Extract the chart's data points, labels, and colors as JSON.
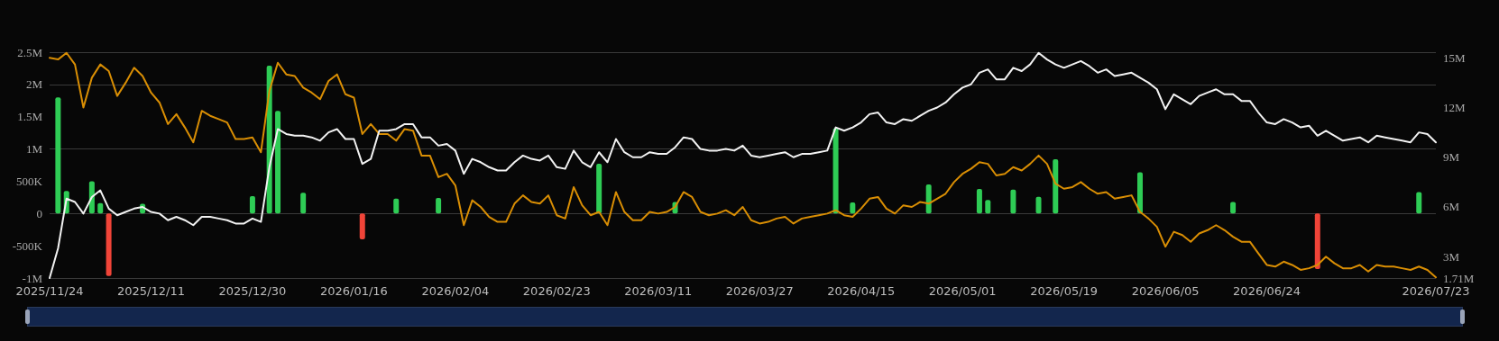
{
  "chart_data": {
    "type": "bar",
    "categories": [
      "2025/11/24",
      null,
      null,
      null,
      null,
      null,
      null,
      null,
      null,
      null,
      null,
      null,
      "2025/12/11",
      null,
      null,
      null,
      null,
      null,
      null,
      null,
      null,
      null,
      null,
      null,
      "2025/12/30",
      null,
      null,
      null,
      null,
      null,
      null,
      null,
      null,
      null,
      null,
      null,
      "2026/01/16",
      null,
      null,
      null,
      null,
      null,
      null,
      null,
      null,
      null,
      null,
      null,
      "2026/02/04",
      null,
      null,
      null,
      null,
      null,
      null,
      null,
      null,
      null,
      null,
      null,
      "2026/02/23",
      null,
      null,
      null,
      null,
      null,
      null,
      null,
      null,
      null,
      null,
      null,
      "2026/03/11",
      null,
      null,
      null,
      null,
      null,
      null,
      null,
      null,
      null,
      null,
      null,
      "2026/03/27",
      null,
      null,
      null,
      null,
      null,
      null,
      null,
      null,
      null,
      null,
      null,
      "2026/04/15",
      null,
      null,
      null,
      null,
      null,
      null,
      null,
      null,
      null,
      null,
      null,
      "2026/05/01",
      null,
      null,
      null,
      null,
      null,
      null,
      null,
      null,
      null,
      null,
      null,
      "2026/05/19",
      null,
      null,
      null,
      null,
      null,
      null,
      null,
      null,
      null,
      null,
      null,
      "2026/06/05",
      null,
      null,
      null,
      null,
      null,
      null,
      null,
      null,
      null,
      null,
      null,
      "2026/06/24",
      null,
      null,
      null,
      null,
      null,
      null,
      null,
      null,
      null,
      null,
      null,
      null,
      null,
      null,
      null,
      null,
      null,
      null,
      null,
      "2026/07/23"
    ],
    "series": [
      {
        "color": "#2ecc55",
        "values": [
          null,
          1800000,
          350000,
          null,
          null,
          500000,
          160000,
          null,
          null,
          null,
          null,
          150000,
          null,
          null,
          null,
          null,
          null,
          null,
          null,
          null,
          null,
          null,
          null,
          null,
          270000,
          null,
          2290000,
          1590000,
          null,
          null,
          320000,
          null,
          null,
          null,
          null,
          null,
          null,
          null,
          null,
          null,
          null,
          230000,
          null,
          null,
          null,
          null,
          240000,
          null,
          null,
          null,
          null,
          null,
          null,
          null,
          null,
          null,
          null,
          null,
          null,
          null,
          null,
          null,
          null,
          null,
          null,
          770000,
          null,
          null,
          null,
          null,
          null,
          null,
          null,
          null,
          180000,
          null,
          null,
          null,
          null,
          null,
          null,
          null,
          null,
          null,
          null,
          null,
          null,
          null,
          null,
          null,
          null,
          null,
          null,
          1320000,
          null,
          170000,
          null,
          null,
          null,
          null,
          null,
          null,
          null,
          null,
          450000,
          null,
          null,
          null,
          null,
          null,
          380000,
          210000,
          null,
          null,
          370000,
          null,
          null,
          260000,
          null,
          840000,
          null,
          null,
          null,
          null,
          null,
          null,
          null,
          null,
          null,
          640000,
          null,
          null,
          null,
          null,
          null,
          null,
          null,
          null,
          null,
          null,
          180000,
          null,
          null,
          null,
          null,
          null,
          null,
          null,
          null,
          null,
          null,
          null,
          null,
          null,
          null,
          null,
          null,
          null,
          null,
          null,
          null,
          null,
          330000,
          null,
          null
        ]
      },
      {
        "color": "#f04438",
        "values": [
          null,
          null,
          null,
          null,
          null,
          null,
          null,
          -970000,
          null,
          null,
          null,
          null,
          null,
          null,
          null,
          null,
          null,
          null,
          null,
          null,
          null,
          null,
          null,
          null,
          null,
          null,
          null,
          null,
          null,
          null,
          null,
          null,
          null,
          null,
          null,
          null,
          null,
          -400000,
          null,
          null,
          null,
          null,
          null,
          null,
          null,
          null,
          null,
          null,
          null,
          null,
          null,
          null,
          null,
          null,
          null,
          null,
          null,
          null,
          null,
          null,
          null,
          null,
          null,
          null,
          null,
          null,
          null,
          null,
          null,
          null,
          null,
          null,
          null,
          null,
          null,
          null,
          null,
          null,
          null,
          null,
          null,
          null,
          null,
          null,
          null,
          null,
          null,
          null,
          null,
          null,
          null,
          null,
          null,
          null,
          null,
          null,
          null,
          null,
          null,
          null,
          null,
          null,
          null,
          null,
          null,
          null,
          null,
          null,
          null,
          null,
          null,
          null,
          null,
          null,
          null,
          null,
          null,
          null,
          null,
          null,
          null,
          null,
          null,
          null,
          null,
          null,
          null,
          null,
          null,
          null,
          null,
          null,
          null,
          null,
          null,
          null,
          null,
          null,
          null,
          null,
          null,
          null,
          null,
          null,
          null,
          null,
          null,
          null,
          null,
          null,
          -860000,
          null,
          null,
          null,
          null,
          null,
          null,
          null,
          null,
          null,
          null,
          null,
          null,
          null,
          null
        ]
      },
      {
        "type": "line",
        "axis": "y2",
        "color": "#d98e04",
        "values": [
          15.0,
          14.9,
          15.3,
          14.6,
          12.0,
          13.8,
          14.6,
          14.2,
          12.7,
          13.5,
          14.4,
          13.9,
          12.9,
          12.3,
          11.0,
          11.6,
          10.8,
          9.9,
          11.8,
          11.5,
          11.3,
          11.1,
          10.1,
          10.1,
          10.2,
          9.3,
          13.0,
          14.7,
          14.0,
          13.9,
          13.2,
          12.9,
          12.5,
          13.6,
          14.0,
          12.8,
          12.6,
          10.4,
          11.0,
          10.4,
          10.4,
          10.0,
          10.7,
          10.6,
          9.1,
          9.1,
          7.8,
          8.0,
          7.3,
          4.9,
          6.4,
          6.0,
          5.4,
          5.1,
          5.1,
          6.2,
          6.7,
          6.3,
          6.2,
          6.7,
          5.5,
          5.3,
          7.2,
          6.1,
          5.5,
          5.7,
          4.9,
          6.9,
          5.7,
          5.2,
          5.2,
          5.7,
          5.6,
          5.7,
          6.0,
          6.9,
          6.6,
          5.7,
          5.5,
          5.6,
          5.8,
          5.5,
          6.0,
          5.2,
          5.0,
          5.1,
          5.3,
          5.4,
          5.0,
          5.3,
          5.4,
          5.5,
          5.6,
          5.8,
          5.5,
          5.4,
          5.9,
          6.5,
          6.6,
          5.9,
          5.6,
          6.1,
          6.0,
          6.3,
          6.2,
          6.5,
          6.8,
          7.5,
          8.0,
          8.3,
          8.7,
          8.6,
          7.9,
          8.0,
          8.4,
          8.2,
          8.6,
          9.1,
          8.6,
          7.4,
          7.1,
          7.2,
          7.5,
          7.1,
          6.8,
          6.9,
          6.5,
          6.6,
          6.7,
          5.7,
          5.3,
          4.8,
          3.6,
          4.5,
          4.3,
          3.9,
          4.4,
          4.6,
          4.9,
          4.6,
          4.2,
          3.9,
          3.9,
          3.2,
          2.5,
          2.4,
          2.7,
          2.5,
          2.2,
          2.3,
          2.5,
          3.0,
          2.6,
          2.3,
          2.3,
          2.5,
          2.1,
          2.5,
          2.4,
          2.4,
          2.3,
          2.2,
          2.4,
          2.2,
          1.75
        ]
      },
      {
        "type": "line",
        "axis": "y2",
        "color": "#f2f2f2",
        "values": [
          1.71,
          3.5,
          6.5,
          6.3,
          5.6,
          6.6,
          7.0,
          5.9,
          5.5,
          5.7,
          5.9,
          6.0,
          5.7,
          5.6,
          5.2,
          5.4,
          5.2,
          4.9,
          5.4,
          5.4,
          5.3,
          5.2,
          5.0,
          5.0,
          5.3,
          5.1,
          8.4,
          10.7,
          10.4,
          10.3,
          10.3,
          10.2,
          10.0,
          10.5,
          10.7,
          10.1,
          10.1,
          8.6,
          8.9,
          10.6,
          10.6,
          10.7,
          11.0,
          11.0,
          10.2,
          10.2,
          9.7,
          9.8,
          9.4,
          8.0,
          8.9,
          8.7,
          8.4,
          8.2,
          8.2,
          8.7,
          9.1,
          8.9,
          8.8,
          9.1,
          8.4,
          8.3,
          9.4,
          8.7,
          8.4,
          9.3,
          8.7,
          10.1,
          9.3,
          9.0,
          9.0,
          9.3,
          9.2,
          9.2,
          9.6,
          10.2,
          10.1,
          9.5,
          9.4,
          9.4,
          9.5,
          9.4,
          9.7,
          9.1,
          9.0,
          9.1,
          9.2,
          9.3,
          9.0,
          9.2,
          9.2,
          9.3,
          9.4,
          10.8,
          10.6,
          10.8,
          11.1,
          11.6,
          11.7,
          11.1,
          11.0,
          11.3,
          11.2,
          11.5,
          11.8,
          12.0,
          12.3,
          12.8,
          13.2,
          13.4,
          14.1,
          14.3,
          13.7,
          13.7,
          14.4,
          14.2,
          14.6,
          15.3,
          14.9,
          14.6,
          14.4,
          14.6,
          14.8,
          14.5,
          14.1,
          14.3,
          13.9,
          14.0,
          14.1,
          13.8,
          13.5,
          13.1,
          11.9,
          12.8,
          12.5,
          12.2,
          12.7,
          12.9,
          13.1,
          12.8,
          12.8,
          12.4,
          12.4,
          11.7,
          11.1,
          11.0,
          11.3,
          11.1,
          10.8,
          10.9,
          10.3,
          10.6,
          10.3,
          10.0,
          10.1,
          10.2,
          9.9,
          10.3,
          10.2,
          10.1,
          10.0,
          9.9,
          10.5,
          10.4,
          9.9
        ]
      }
    ],
    "ylim": [
      -1000000,
      2500000
    ],
    "yticks": [
      {
        "value": -1000000,
        "label": "-1M"
      },
      {
        "value": -500000,
        "label": "-500K"
      },
      0,
      {
        "value": 500000,
        "label": "500K"
      },
      {
        "value": 1000000,
        "label": "1M"
      },
      {
        "value": 1500000,
        "label": "1.5M"
      },
      {
        "value": 2000000,
        "label": "2M"
      },
      {
        "value": 2500000,
        "label": "2.5M"
      }
    ],
    "y2lim": [
      1.71,
      15.34
    ],
    "y2ticks": [
      {
        "value": 1.71,
        "label": "1.71M"
      },
      {
        "value": 3,
        "label": "3M"
      },
      {
        "value": 6,
        "label": "6M"
      },
      {
        "value": 9,
        "label": "9M"
      },
      {
        "value": 12,
        "label": "12M"
      },
      {
        "value": 15,
        "label": "15M"
      }
    ],
    "grid": "y",
    "marker": "none",
    "line_style": "solid"
  }
}
